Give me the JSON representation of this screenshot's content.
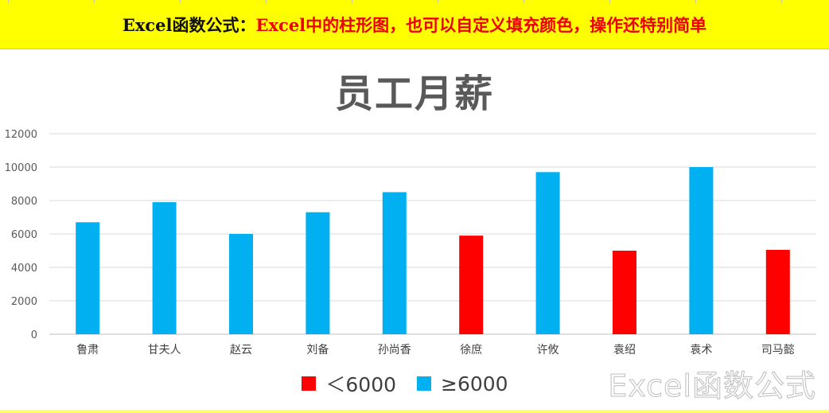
{
  "banner": {
    "lead": "Excel函数公式：",
    "rest": "Excel中的柱形图，也可以自定义填充颜色，操作还特别简单"
  },
  "chart_data": {
    "type": "bar",
    "title": "员工月薪",
    "categories": [
      "鲁肃",
      "甘夫人",
      "赵云",
      "刘备",
      "孙尚香",
      "徐庶",
      "许攸",
      "袁绍",
      "袁术",
      "司马懿"
    ],
    "values": [
      6700,
      7900,
      6000,
      7300,
      8500,
      5900,
      9700,
      5000,
      10000,
      5050
    ],
    "threshold": 6000,
    "ylim": [
      0,
      12000
    ],
    "yticks": [
      0,
      2000,
      4000,
      6000,
      8000,
      10000,
      12000
    ],
    "grid": true,
    "legend_position": "bottom",
    "legend": [
      {
        "label": "＜6000",
        "color": "#ff0000"
      },
      {
        "label": "≥6000",
        "color": "#00b0f0"
      }
    ],
    "colors": {
      "below": "#ff0000",
      "above": "#00b0f0"
    }
  },
  "watermark": "Excel函数公式"
}
